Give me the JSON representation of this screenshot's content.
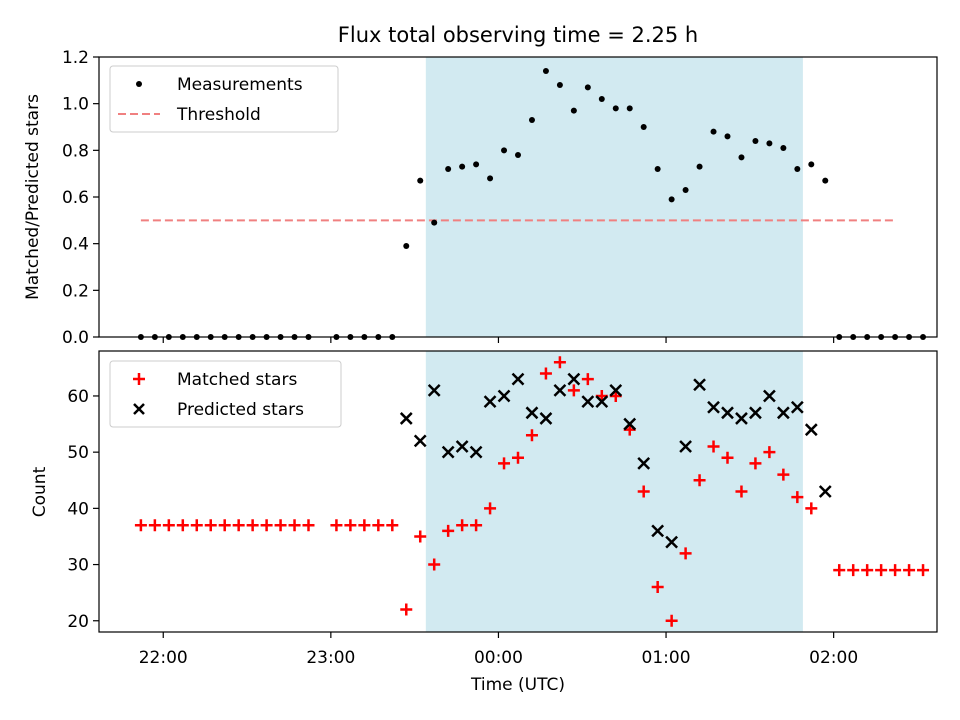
{
  "title": "Flux total observing time = 2.25 h",
  "xlabel": "Time (UTC)",
  "x_ticks": [
    "22:00",
    "23:00",
    "00:00",
    "01:00",
    "02:00"
  ],
  "colors": {
    "measurement": "#000000",
    "threshold": "#f08080",
    "matched": "#ff0000",
    "predicted": "#000000",
    "span": "#add8e6"
  },
  "chart_data": [
    {
      "type": "scatter",
      "ylabel": "Matched/Predicted stars",
      "ylim": [
        0,
        1.2
      ],
      "y_ticks": [
        "0.0",
        "0.2",
        "0.4",
        "0.6",
        "0.8",
        "1.0",
        "1.2"
      ],
      "x_range": [
        "21:37",
        "02:37"
      ],
      "highlight_span": [
        "23:34",
        "01:49"
      ],
      "grid": false,
      "legend": "top-left",
      "threshold": {
        "name": "Threshold",
        "y": 0.5,
        "x": [
          "21:52",
          "02:22"
        ]
      },
      "series": [
        {
          "name": "Measurements",
          "marker": "dot",
          "points": [
            [
              "21:52",
              0.0
            ],
            [
              "21:57",
              0.0
            ],
            [
              "22:02",
              0.0
            ],
            [
              "22:07",
              0.0
            ],
            [
              "22:12",
              0.0
            ],
            [
              "22:17",
              0.0
            ],
            [
              "22:22",
              0.0
            ],
            [
              "22:27",
              0.0
            ],
            [
              "22:32",
              0.0
            ],
            [
              "22:37",
              0.0
            ],
            [
              "22:42",
              0.0
            ],
            [
              "22:47",
              0.0
            ],
            [
              "22:52",
              0.0
            ],
            [
              "23:02",
              0.0
            ],
            [
              "23:07",
              0.0
            ],
            [
              "23:12",
              0.0
            ],
            [
              "23:17",
              0.0
            ],
            [
              "23:22",
              0.0
            ],
            [
              "23:27",
              0.39
            ],
            [
              "23:32",
              0.67
            ],
            [
              "23:37",
              0.49
            ],
            [
              "23:42",
              0.72
            ],
            [
              "23:47",
              0.73
            ],
            [
              "23:52",
              0.74
            ],
            [
              "23:57",
              0.68
            ],
            [
              "00:02",
              0.8
            ],
            [
              "00:07",
              0.78
            ],
            [
              "00:12",
              0.93
            ],
            [
              "00:17",
              1.14
            ],
            [
              "00:22",
              1.08
            ],
            [
              "00:27",
              0.97
            ],
            [
              "00:32",
              1.07
            ],
            [
              "00:37",
              1.02
            ],
            [
              "00:42",
              0.98
            ],
            [
              "00:47",
              0.98
            ],
            [
              "00:52",
              0.9
            ],
            [
              "00:57",
              0.72
            ],
            [
              "01:02",
              0.59
            ],
            [
              "01:07",
              0.63
            ],
            [
              "01:12",
              0.73
            ],
            [
              "01:17",
              0.88
            ],
            [
              "01:22",
              0.86
            ],
            [
              "01:27",
              0.77
            ],
            [
              "01:32",
              0.84
            ],
            [
              "01:37",
              0.83
            ],
            [
              "01:42",
              0.81
            ],
            [
              "01:47",
              0.72
            ],
            [
              "01:52",
              0.74
            ],
            [
              "01:57",
              0.67
            ],
            [
              "02:02",
              0.0
            ],
            [
              "02:07",
              0.0
            ],
            [
              "02:12",
              0.0
            ],
            [
              "02:17",
              0.0
            ],
            [
              "02:22",
              0.0
            ],
            [
              "02:27",
              0.0
            ],
            [
              "02:32",
              0.0
            ]
          ]
        }
      ]
    },
    {
      "type": "scatter",
      "ylabel": "Count",
      "ylim": [
        18,
        68
      ],
      "y_ticks": [
        "20",
        "30",
        "40",
        "50",
        "60"
      ],
      "x_range": [
        "21:37",
        "02:37"
      ],
      "highlight_span": [
        "23:34",
        "01:49"
      ],
      "grid": false,
      "legend": "top-left",
      "series": [
        {
          "name": "Matched stars",
          "marker": "plus",
          "points": [
            [
              "21:52",
              37
            ],
            [
              "21:57",
              37
            ],
            [
              "22:02",
              37
            ],
            [
              "22:07",
              37
            ],
            [
              "22:12",
              37
            ],
            [
              "22:17",
              37
            ],
            [
              "22:22",
              37
            ],
            [
              "22:27",
              37
            ],
            [
              "22:32",
              37
            ],
            [
              "22:37",
              37
            ],
            [
              "22:42",
              37
            ],
            [
              "22:47",
              37
            ],
            [
              "22:52",
              37
            ],
            [
              "23:02",
              37
            ],
            [
              "23:07",
              37
            ],
            [
              "23:12",
              37
            ],
            [
              "23:17",
              37
            ],
            [
              "23:22",
              37
            ],
            [
              "23:27",
              22
            ],
            [
              "23:32",
              35
            ],
            [
              "23:37",
              30
            ],
            [
              "23:42",
              36
            ],
            [
              "23:47",
              37
            ],
            [
              "23:52",
              37
            ],
            [
              "23:57",
              40
            ],
            [
              "00:02",
              48
            ],
            [
              "00:07",
              49
            ],
            [
              "00:12",
              53
            ],
            [
              "00:17",
              64
            ],
            [
              "00:22",
              66
            ],
            [
              "00:27",
              61
            ],
            [
              "00:32",
              63
            ],
            [
              "00:37",
              60
            ],
            [
              "00:42",
              60
            ],
            [
              "00:47",
              54
            ],
            [
              "00:52",
              43
            ],
            [
              "00:57",
              26
            ],
            [
              "01:02",
              20
            ],
            [
              "01:07",
              32
            ],
            [
              "01:12",
              45
            ],
            [
              "01:17",
              51
            ],
            [
              "01:22",
              49
            ],
            [
              "01:27",
              43
            ],
            [
              "01:32",
              48
            ],
            [
              "01:37",
              50
            ],
            [
              "01:42",
              46
            ],
            [
              "01:47",
              42
            ],
            [
              "01:52",
              40
            ],
            [
              "02:02",
              29
            ],
            [
              "02:07",
              29
            ],
            [
              "02:12",
              29
            ],
            [
              "02:17",
              29
            ],
            [
              "02:22",
              29
            ],
            [
              "02:27",
              29
            ],
            [
              "02:32",
              29
            ]
          ]
        },
        {
          "name": "Predicted stars",
          "marker": "x",
          "points": [
            [
              "23:27",
              56
            ],
            [
              "23:32",
              52
            ],
            [
              "23:37",
              61
            ],
            [
              "23:42",
              50
            ],
            [
              "23:47",
              51
            ],
            [
              "23:52",
              50
            ],
            [
              "23:57",
              59
            ],
            [
              "00:02",
              60
            ],
            [
              "00:07",
              63
            ],
            [
              "00:12",
              57
            ],
            [
              "00:17",
              56
            ],
            [
              "00:22",
              61
            ],
            [
              "00:27",
              63
            ],
            [
              "00:32",
              59
            ],
            [
              "00:37",
              59
            ],
            [
              "00:42",
              61
            ],
            [
              "00:47",
              55
            ],
            [
              "00:52",
              48
            ],
            [
              "00:57",
              36
            ],
            [
              "01:02",
              34
            ],
            [
              "01:07",
              51
            ],
            [
              "01:12",
              62
            ],
            [
              "01:17",
              58
            ],
            [
              "01:22",
              57
            ],
            [
              "01:27",
              56
            ],
            [
              "01:32",
              57
            ],
            [
              "01:37",
              60
            ],
            [
              "01:42",
              57
            ],
            [
              "01:47",
              58
            ],
            [
              "01:52",
              54
            ],
            [
              "01:57",
              43
            ]
          ]
        }
      ]
    }
  ]
}
